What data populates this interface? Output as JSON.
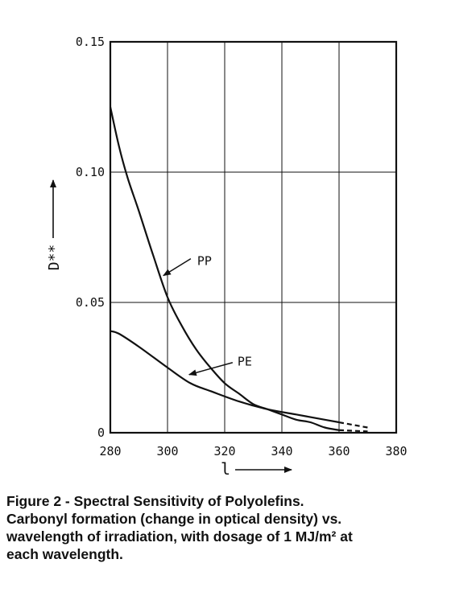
{
  "chart_data": {
    "type": "line",
    "xlabel": "l",
    "ylabel": "D**",
    "xlim": [
      280,
      380
    ],
    "ylim": [
      0,
      0.15
    ],
    "x_ticks": [
      "280",
      "300",
      "320",
      "340",
      "360",
      "380"
    ],
    "y_ticks": [
      "0",
      "0.05",
      "0.10",
      "0.15"
    ],
    "grid": true,
    "series": [
      {
        "name": "PP",
        "x": [
          280,
          283,
          286,
          290,
          295,
          300,
          305,
          310,
          315,
          320,
          325,
          330,
          335,
          340,
          345,
          350,
          355,
          360
        ],
        "y": [
          0.125,
          0.11,
          0.098,
          0.085,
          0.068,
          0.052,
          0.041,
          0.032,
          0.025,
          0.019,
          0.015,
          0.011,
          0.009,
          0.007,
          0.005,
          0.004,
          0.002,
          0.001
        ],
        "dashed_x": [
          360,
          370
        ],
        "dashed_y": [
          0.001,
          0.0005
        ]
      },
      {
        "name": "PE",
        "x": [
          280,
          283,
          290,
          300,
          308,
          315,
          325,
          335,
          345,
          355,
          360
        ],
        "y": [
          0.039,
          0.038,
          0.033,
          0.025,
          0.019,
          0.016,
          0.012,
          0.009,
          0.007,
          0.005,
          0.004
        ],
        "dashed_x": [
          360,
          370
        ],
        "dashed_y": [
          0.004,
          0.002
        ]
      }
    ],
    "annotations": [
      {
        "text": "PP",
        "series": "PP",
        "arrow_to_x": 298,
        "arrow_to_y": 0.06
      },
      {
        "text": "PE",
        "series": "PE",
        "arrow_to_x": 307,
        "arrow_to_y": 0.022
      }
    ]
  },
  "caption": {
    "line1": "Figure 2 - Spectral Sensitivity of Polyolefins.",
    "line2": "Carbonyl formation (change in optical density) vs.",
    "line3": "wavelength of irradiation, with dosage of 1 MJ/m² at",
    "line4": "each wavelength."
  }
}
